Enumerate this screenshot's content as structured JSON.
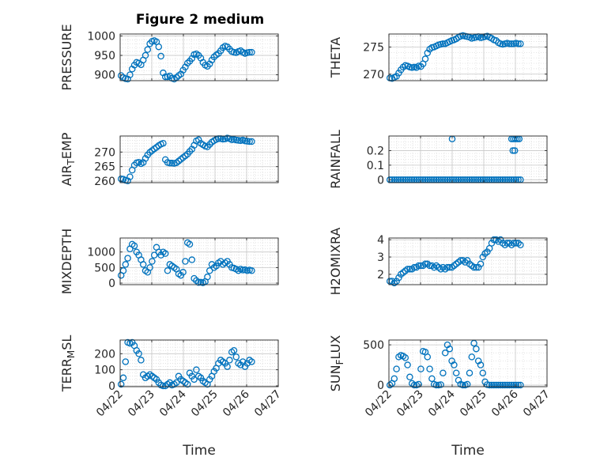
{
  "title": "Figure 2 medium",
  "xlabel": "Time",
  "x_ticks": [
    "04/22",
    "04/23",
    "04/24",
    "04/25",
    "04/26",
    "04/27"
  ],
  "marker_color": "#0072BD",
  "chart_data": [
    {
      "type": "scatter",
      "ylabel": "PRESSURE",
      "ylim": [
        885,
        1005
      ],
      "yticks": [
        "900",
        "950",
        "1000"
      ],
      "ytick_values": [
        900,
        950,
        1000
      ],
      "grid": true,
      "x": [
        0.03,
        0.1,
        0.17,
        0.24,
        0.31,
        0.38,
        0.45,
        0.52,
        0.59,
        0.66,
        0.73,
        0.8,
        0.87,
        0.94,
        1.01,
        1.08,
        1.15,
        1.22,
        1.29,
        1.36,
        1.43,
        1.5,
        1.57,
        1.64,
        1.71,
        1.78,
        1.85,
        1.92,
        1.99,
        2.06,
        2.13,
        2.2,
        2.27,
        2.34,
        2.41,
        2.48,
        2.55,
        2.62,
        2.69,
        2.76,
        2.83,
        2.9,
        2.97,
        3.04,
        3.11,
        3.18,
        3.25,
        3.32,
        3.39,
        3.46,
        3.53,
        3.6,
        3.67,
        3.74,
        3.81,
        3.88,
        3.95,
        4.02,
        4.09,
        4.16
      ],
      "y": [
        898,
        893,
        890,
        889,
        900,
        915,
        925,
        932,
        930,
        926,
        938,
        950,
        965,
        980,
        986,
        988,
        985,
        972,
        948,
        905,
        895,
        895,
        897,
        891,
        889,
        893,
        898,
        902,
        912,
        920,
        930,
        935,
        942,
        952,
        954,
        950,
        943,
        932,
        925,
        922,
        928,
        938,
        946,
        951,
        955,
        962,
        970,
        974,
        972,
        966,
        960,
        958,
        957,
        960,
        962,
        958,
        955,
        957,
        958,
        958
      ]
    },
    {
      "type": "scatter",
      "ylabel": "THETA",
      "ylim": [
        268.8,
        277.4
      ],
      "yticks": [
        "270",
        "275"
      ],
      "ytick_values": [
        270,
        275
      ],
      "grid": true,
      "x": [
        0.03,
        0.1,
        0.17,
        0.24,
        0.31,
        0.38,
        0.45,
        0.52,
        0.59,
        0.66,
        0.73,
        0.8,
        0.87,
        0.94,
        1.01,
        1.08,
        1.15,
        1.22,
        1.29,
        1.36,
        1.43,
        1.5,
        1.57,
        1.64,
        1.71,
        1.78,
        1.85,
        1.92,
        1.99,
        2.06,
        2.13,
        2.2,
        2.27,
        2.34,
        2.41,
        2.48,
        2.55,
        2.62,
        2.69,
        2.76,
        2.83,
        2.9,
        2.97,
        3.04,
        3.11,
        3.18,
        3.25,
        3.32,
        3.39,
        3.46,
        3.53,
        3.6,
        3.67,
        3.74,
        3.81,
        3.88,
        3.95,
        4.02,
        4.09,
        4.16
      ],
      "y": [
        269.3,
        269.2,
        269.4,
        269.6,
        270.2,
        270.8,
        271.3,
        271.6,
        271.5,
        271.3,
        271.2,
        271.3,
        271.2,
        271.5,
        271.4,
        271.9,
        272.8,
        273.9,
        274.6,
        274.9,
        275.0,
        275.2,
        275.4,
        275.5,
        275.6,
        275.6,
        275.8,
        276.0,
        276.2,
        276.3,
        276.5,
        276.8,
        277.0,
        277.1,
        277.0,
        276.9,
        276.8,
        276.6,
        276.7,
        276.8,
        276.9,
        276.7,
        276.8,
        276.9,
        277.0,
        276.8,
        276.6,
        276.3,
        276.2,
        275.8,
        275.6,
        275.5,
        275.6,
        275.7,
        275.6,
        275.6,
        275.6,
        275.7,
        275.6,
        275.6
      ]
    },
    {
      "type": "scatter",
      "ylabel": "AIR_TEMP",
      "ylim": [
        259.5,
        275.5
      ],
      "yticks": [
        "260",
        "265",
        "270"
      ],
      "ytick_values": [
        260,
        265,
        270
      ],
      "grid": true,
      "x": [
        0.03,
        0.1,
        0.17,
        0.24,
        0.31,
        0.38,
        0.45,
        0.52,
        0.59,
        0.66,
        0.73,
        0.8,
        0.87,
        0.94,
        1.01,
        1.08,
        1.15,
        1.22,
        1.29,
        1.36,
        1.43,
        1.5,
        1.57,
        1.64,
        1.71,
        1.78,
        1.85,
        1.92,
        1.99,
        2.06,
        2.13,
        2.2,
        2.27,
        2.34,
        2.41,
        2.48,
        2.55,
        2.62,
        2.69,
        2.76,
        2.83,
        2.9,
        2.97,
        3.04,
        3.11,
        3.18,
        3.25,
        3.32,
        3.39,
        3.46,
        3.53,
        3.6,
        3.67,
        3.74,
        3.81,
        3.88,
        3.95,
        4.02,
        4.09,
        4.16
      ],
      "y": [
        260.8,
        260.7,
        260.3,
        260.1,
        261.5,
        263.8,
        265.5,
        266.3,
        266.5,
        266.0,
        266.4,
        267.8,
        269.0,
        269.9,
        270.5,
        271.1,
        271.6,
        272.2,
        272.7,
        273.0,
        267.4,
        266.4,
        266.2,
        266.2,
        266.1,
        266.3,
        266.9,
        267.5,
        268.1,
        268.7,
        269.3,
        270.2,
        271.0,
        272.3,
        273.8,
        274.2,
        273.0,
        272.5,
        272.0,
        271.8,
        272.6,
        273.4,
        273.9,
        274.3,
        274.6,
        274.6,
        274.4,
        274.5,
        274.8,
        274.6,
        274.2,
        274.3,
        274.1,
        274.0,
        273.9,
        274.1,
        273.8,
        273.7,
        273.6,
        273.6
      ]
    },
    {
      "type": "scatter",
      "ylabel": "RAINFALL",
      "ylim": [
        -0.02,
        0.3
      ],
      "yticks": [
        "0",
        "0.1",
        "0.2"
      ],
      "ytick_values": [
        0,
        0.1,
        0.2
      ],
      "grid": true,
      "x": [
        0.03,
        0.1,
        0.17,
        0.24,
        0.31,
        0.38,
        0.45,
        0.52,
        0.59,
        0.66,
        0.73,
        0.8,
        0.87,
        0.94,
        1.01,
        1.08,
        1.15,
        1.22,
        1.29,
        1.36,
        1.43,
        1.5,
        1.57,
        1.64,
        1.71,
        1.78,
        1.85,
        1.92,
        1.99,
        2.06,
        2.13,
        2.2,
        2.27,
        2.34,
        2.41,
        2.48,
        2.55,
        2.62,
        2.69,
        2.76,
        2.83,
        2.9,
        2.97,
        3.04,
        3.11,
        3.18,
        3.25,
        3.32,
        3.39,
        3.46,
        3.53,
        3.6,
        3.67,
        3.74,
        3.81,
        3.88,
        3.95,
        4.02,
        4.09,
        4.16,
        2.0,
        3.88,
        3.94,
        4.0,
        4.06,
        4.12,
        3.92,
        3.98
      ],
      "y": [
        0,
        0,
        0,
        0,
        0,
        0,
        0,
        0,
        0,
        0,
        0,
        0,
        0,
        0,
        0,
        0,
        0,
        0,
        0,
        0,
        0,
        0,
        0,
        0,
        0,
        0,
        0,
        0,
        0,
        0,
        0,
        0,
        0,
        0,
        0,
        0,
        0,
        0,
        0,
        0,
        0,
        0,
        0,
        0,
        0,
        0,
        0,
        0,
        0,
        0,
        0,
        0,
        0,
        0,
        0,
        0,
        0,
        0,
        0,
        0,
        0.28,
        0.28,
        0.28,
        0.28,
        0.28,
        0.28,
        0.2,
        0.2
      ]
    },
    {
      "type": "scatter",
      "ylabel": "MIXDEPTH",
      "ylim": [
        -50,
        1450
      ],
      "yticks": [
        "0",
        "500",
        "1000"
      ],
      "ytick_values": [
        0,
        500,
        1000
      ],
      "grid": true,
      "x": [
        0.03,
        0.1,
        0.17,
        0.24,
        0.31,
        0.38,
        0.45,
        0.52,
        0.59,
        0.66,
        0.73,
        0.8,
        0.87,
        0.94,
        1.01,
        1.08,
        1.15,
        1.22,
        1.29,
        1.36,
        1.43,
        1.5,
        1.57,
        1.64,
        1.71,
        1.78,
        1.85,
        1.92,
        1.99,
        2.06,
        2.13,
        2.2,
        2.27,
        2.34,
        2.41,
        2.48,
        2.55,
        2.62,
        2.69,
        2.76,
        2.83,
        2.9,
        2.97,
        3.04,
        3.11,
        3.18,
        3.25,
        3.32,
        3.39,
        3.46,
        3.53,
        3.6,
        3.67,
        3.74,
        3.81,
        3.88,
        3.95,
        4.02,
        4.09,
        4.16
      ],
      "y": [
        250,
        400,
        600,
        800,
        1100,
        1250,
        1200,
        1000,
        900,
        750,
        600,
        400,
        350,
        500,
        700,
        900,
        1150,
        1000,
        900,
        1000,
        950,
        400,
        600,
        550,
        500,
        450,
        300,
        250,
        350,
        700,
        1300,
        1250,
        750,
        150,
        80,
        20,
        30,
        10,
        50,
        200,
        400,
        600,
        500,
        550,
        650,
        700,
        600,
        650,
        700,
        600,
        500,
        480,
        450,
        400,
        450,
        420,
        430,
        400,
        420,
        400
      ]
    },
    {
      "type": "scatter",
      "ylabel": "H2OMIXRA",
      "ylim": [
        1.4,
        4.1
      ],
      "yticks": [
        "2",
        "3",
        "4"
      ],
      "ytick_values": [
        2,
        3,
        4
      ],
      "grid": true,
      "x": [
        0.03,
        0.1,
        0.17,
        0.24,
        0.31,
        0.38,
        0.45,
        0.52,
        0.59,
        0.66,
        0.73,
        0.8,
        0.87,
        0.94,
        1.01,
        1.08,
        1.15,
        1.22,
        1.29,
        1.36,
        1.43,
        1.5,
        1.57,
        1.64,
        1.71,
        1.78,
        1.85,
        1.92,
        1.99,
        2.06,
        2.13,
        2.2,
        2.27,
        2.34,
        2.41,
        2.48,
        2.55,
        2.62,
        2.69,
        2.76,
        2.83,
        2.9,
        2.97,
        3.04,
        3.11,
        3.18,
        3.25,
        3.32,
        3.39,
        3.46,
        3.53,
        3.6,
        3.67,
        3.74,
        3.81,
        3.88,
        3.95,
        4.02,
        4.09,
        4.16
      ],
      "y": [
        1.6,
        1.6,
        1.5,
        1.6,
        1.8,
        2.0,
        2.1,
        2.2,
        2.3,
        2.3,
        2.3,
        2.4,
        2.4,
        2.5,
        2.5,
        2.5,
        2.6,
        2.6,
        2.5,
        2.5,
        2.4,
        2.5,
        2.4,
        2.3,
        2.4,
        2.3,
        2.4,
        2.4,
        2.4,
        2.5,
        2.6,
        2.7,
        2.8,
        2.8,
        2.7,
        2.8,
        2.6,
        2.5,
        2.4,
        2.4,
        2.4,
        2.6,
        3.0,
        3.2,
        3.3,
        3.5,
        3.8,
        4.0,
        4.0,
        3.9,
        4.0,
        3.8,
        3.7,
        3.8,
        3.8,
        3.7,
        3.8,
        3.8,
        3.8,
        3.7
      ]
    },
    {
      "type": "scatter",
      "ylabel": "TERR_MSL",
      "ylim": [
        -5,
        285
      ],
      "yticks": [
        "0",
        "100",
        "200"
      ],
      "ytick_values": [
        0,
        100,
        200
      ],
      "grid": true,
      "x": [
        0.03,
        0.1,
        0.17,
        0.24,
        0.31,
        0.38,
        0.45,
        0.52,
        0.59,
        0.66,
        0.73,
        0.8,
        0.87,
        0.94,
        1.01,
        1.08,
        1.15,
        1.22,
        1.29,
        1.36,
        1.43,
        1.5,
        1.57,
        1.64,
        1.71,
        1.78,
        1.85,
        1.92,
        1.99,
        2.06,
        2.13,
        2.2,
        2.27,
        2.34,
        2.41,
        2.48,
        2.55,
        2.62,
        2.69,
        2.76,
        2.83,
        2.9,
        2.97,
        3.04,
        3.11,
        3.18,
        3.25,
        3.32,
        3.39,
        3.46,
        3.53,
        3.6,
        3.67,
        3.74,
        3.81,
        3.88,
        3.95,
        4.02,
        4.09,
        4.16
      ],
      "y": [
        10,
        50,
        150,
        270,
        265,
        270,
        250,
        220,
        200,
        160,
        70,
        50,
        60,
        70,
        60,
        50,
        40,
        20,
        5,
        0,
        0,
        10,
        20,
        5,
        10,
        20,
        60,
        40,
        30,
        20,
        10,
        80,
        60,
        40,
        100,
        60,
        50,
        30,
        20,
        10,
        40,
        60,
        90,
        110,
        140,
        160,
        150,
        140,
        120,
        160,
        210,
        220,
        180,
        140,
        130,
        150,
        120,
        140,
        160,
        150
      ]
    },
    {
      "type": "scatter",
      "ylabel": "SUN_FLUX",
      "ylim": [
        -20,
        560
      ],
      "yticks": [
        "0",
        "500"
      ],
      "ytick_values": [
        0,
        500
      ],
      "grid": true,
      "x": [
        0.03,
        0.1,
        0.17,
        0.24,
        0.31,
        0.38,
        0.45,
        0.52,
        0.59,
        0.66,
        0.73,
        0.8,
        0.87,
        0.94,
        1.01,
        1.08,
        1.15,
        1.22,
        1.29,
        1.36,
        1.43,
        1.5,
        1.57,
        1.64,
        1.71,
        1.78,
        1.85,
        1.92,
        1.99,
        2.06,
        2.13,
        2.2,
        2.27,
        2.34,
        2.41,
        2.48,
        2.55,
        2.62,
        2.69,
        2.76,
        2.83,
        2.9,
        2.97,
        3.04,
        3.11,
        3.18,
        3.25,
        3.32,
        3.39,
        3.46,
        3.53,
        3.6,
        3.67,
        3.74,
        3.81,
        3.88,
        3.95,
        4.02,
        4.09,
        4.16
      ],
      "y": [
        0,
        20,
        80,
        200,
        350,
        370,
        360,
        340,
        250,
        100,
        20,
        0,
        0,
        10,
        200,
        420,
        410,
        350,
        200,
        80,
        10,
        0,
        0,
        5,
        150,
        400,
        500,
        450,
        300,
        250,
        150,
        60,
        10,
        0,
        0,
        10,
        150,
        350,
        520,
        450,
        300,
        250,
        150,
        40,
        5,
        0,
        0,
        0,
        0,
        0,
        0,
        0,
        0,
        0,
        0,
        0,
        0,
        0,
        0,
        0
      ]
    }
  ]
}
